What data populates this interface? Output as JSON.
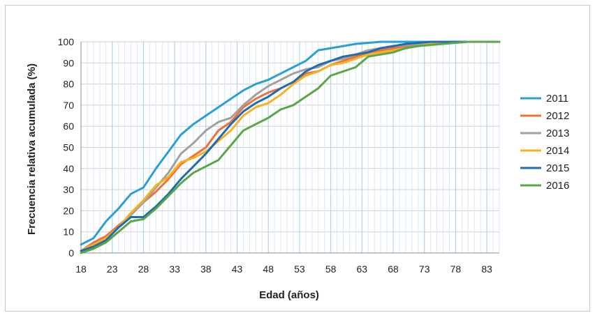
{
  "chart_data": {
    "type": "line",
    "title": "",
    "xlabel": "Edad (años)",
    "ylabel": "Frecuencia relativa acumulada (%)",
    "xlim": [
      18,
      85
    ],
    "ylim": [
      0,
      100
    ],
    "x_ticks": [
      "18",
      "23",
      "28",
      "33",
      "38",
      "43",
      "48",
      "53",
      "58",
      "63",
      "68",
      "73",
      "78",
      "83"
    ],
    "y_ticks": [
      "0",
      "10",
      "20",
      "30",
      "40",
      "50",
      "60",
      "70",
      "80",
      "90",
      "100"
    ],
    "grid": true,
    "legend_position": "right",
    "x": [
      18,
      20,
      22,
      24,
      26,
      28,
      30,
      32,
      34,
      36,
      38,
      40,
      42,
      44,
      46,
      48,
      50,
      52,
      54,
      56,
      58,
      60,
      62,
      64,
      66,
      68,
      70,
      72,
      74,
      76,
      78,
      80,
      82,
      84,
      85
    ],
    "series": [
      {
        "name": "2011",
        "color": "#2a9fd6",
        "width": 3,
        "values": [
          4,
          7,
          15,
          21,
          28,
          31,
          40,
          48,
          56,
          61,
          65,
          69,
          73,
          77,
          80,
          82,
          85,
          88,
          91,
          96,
          97,
          98,
          99,
          99.5,
          100,
          100,
          100,
          100,
          100,
          100,
          100,
          100,
          100,
          100,
          100
        ]
      },
      {
        "name": "2012",
        "color": "#f0703a",
        "width": 3,
        "values": [
          1,
          5,
          8,
          13,
          18,
          24,
          29,
          35,
          42,
          46,
          50,
          58,
          62,
          69,
          73,
          76,
          78,
          81,
          85,
          86,
          89,
          91,
          93,
          95,
          96,
          97,
          98,
          99,
          99.5,
          100,
          100,
          100,
          100,
          100,
          100
        ]
      },
      {
        "name": "2013",
        "color": "#a0a0a0",
        "width": 3,
        "values": [
          1,
          4,
          7,
          12,
          18,
          24,
          31,
          38,
          47,
          52,
          58,
          62,
          64,
          70,
          75,
          79,
          82,
          85,
          87,
          88,
          91,
          92,
          94,
          96,
          97,
          98,
          98.5,
          99,
          99.5,
          99.8,
          100,
          100,
          100,
          100,
          100
        ]
      },
      {
        "name": "2014",
        "color": "#f7b022",
        "width": 3,
        "values": [
          1,
          4,
          7,
          12,
          19,
          25,
          32,
          36,
          43,
          45,
          48,
          53,
          58,
          65,
          69,
          71,
          75,
          80,
          84,
          86,
          89,
          90,
          92,
          94,
          95,
          96,
          97,
          98,
          99,
          99.5,
          100,
          100,
          100,
          100,
          100
        ]
      },
      {
        "name": "2015",
        "color": "#1f6cb0",
        "width": 3,
        "values": [
          1,
          3,
          6,
          12,
          17,
          17,
          22,
          28,
          35,
          41,
          47,
          54,
          61,
          67,
          71,
          74,
          78,
          81,
          86,
          89,
          91,
          93,
          94,
          95,
          97,
          98,
          99,
          99.5,
          100,
          100,
          100,
          100,
          100,
          100,
          100
        ]
      },
      {
        "name": "2016",
        "color": "#5aa646",
        "width": 3,
        "values": [
          0,
          2,
          5,
          10,
          15,
          16,
          21,
          27,
          33,
          38,
          41,
          44,
          51,
          58,
          61,
          64,
          68,
          70,
          74,
          78,
          84,
          86,
          88,
          93,
          94,
          95,
          97,
          98,
          98.5,
          99,
          99.5,
          100,
          100,
          100,
          100
        ]
      }
    ]
  }
}
